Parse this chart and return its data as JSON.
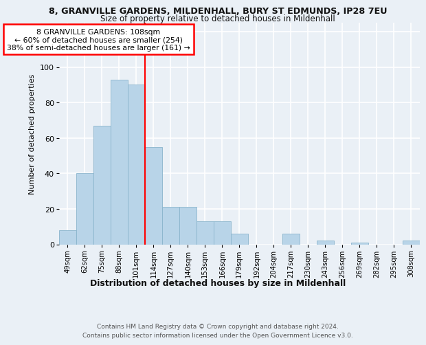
{
  "title1": "8, GRANVILLE GARDENS, MILDENHALL, BURY ST EDMUNDS, IP28 7EU",
  "title2": "Size of property relative to detached houses in Mildenhall",
  "dist_label": "Distribution of detached houses by size in Mildenhall",
  "ylabel": "Number of detached properties",
  "categories": [
    "49sqm",
    "62sqm",
    "75sqm",
    "88sqm",
    "101sqm",
    "114sqm",
    "127sqm",
    "140sqm",
    "153sqm",
    "166sqm",
    "179sqm",
    "192sqm",
    "204sqm",
    "217sqm",
    "230sqm",
    "243sqm",
    "256sqm",
    "269sqm",
    "282sqm",
    "295sqm",
    "308sqm"
  ],
  "values": [
    8,
    40,
    67,
    93,
    90,
    55,
    21,
    21,
    13,
    13,
    6,
    0,
    0,
    6,
    0,
    2,
    0,
    1,
    0,
    0,
    2
  ],
  "bar_color": "#b8d4e8",
  "bar_edge_color": "#8ab4cc",
  "property_line_label": "8 GRANVILLE GARDENS: 108sqm",
  "annotation_line1": "← 60% of detached houses are smaller (254)",
  "annotation_line2": "38% of semi-detached houses are larger (161) →",
  "annotation_box_color": "white",
  "annotation_box_edge_color": "red",
  "vline_color": "red",
  "vline_x": 4.5,
  "ylim": [
    0,
    125
  ],
  "yticks": [
    0,
    20,
    40,
    60,
    80,
    100,
    120
  ],
  "background_color": "#eaf0f6",
  "grid_color": "white",
  "footer1": "Contains HM Land Registry data © Crown copyright and database right 2024.",
  "footer2": "Contains public sector information licensed under the Open Government Licence v3.0."
}
